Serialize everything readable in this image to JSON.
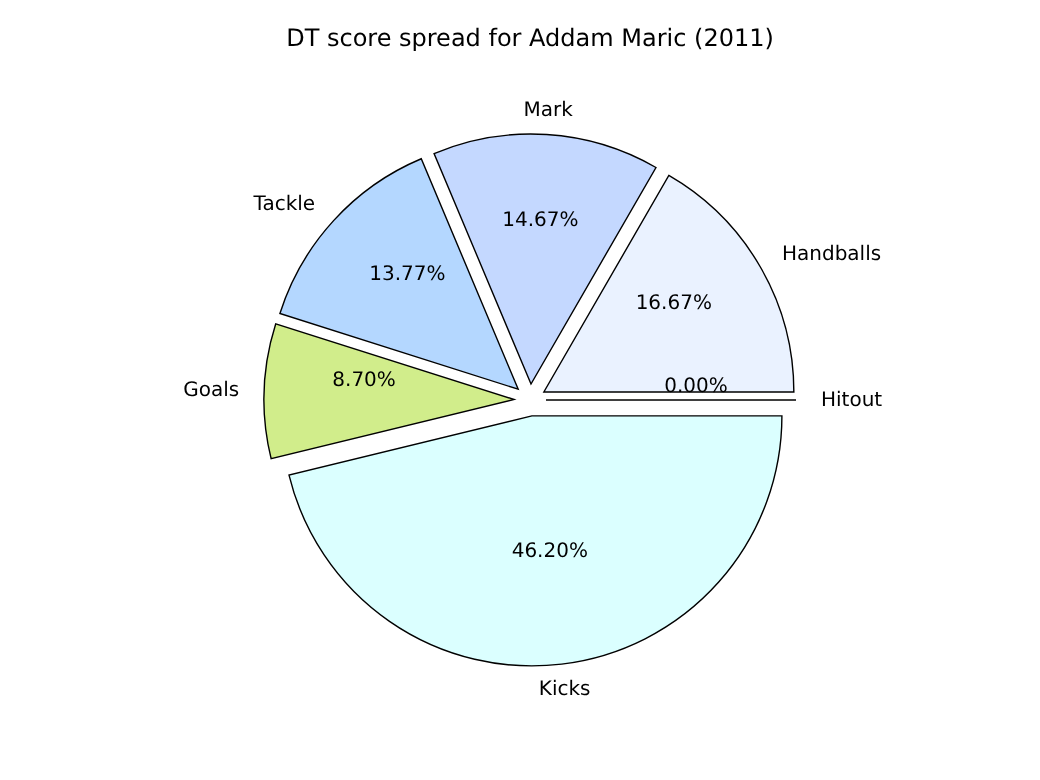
{
  "chart_data": {
    "type": "pie",
    "title": "DT score spread for Addam Maric (2011)",
    "categories": [
      "Handballs",
      "Mark",
      "Tackle",
      "Goals",
      "Kicks",
      "Hitout"
    ],
    "values": [
      16.67,
      14.67,
      13.77,
      8.7,
      46.2,
      0.0
    ],
    "value_labels": [
      "16.67%",
      "14.67%",
      "13.77%",
      "8.70%",
      "46.20%",
      "0.00%"
    ],
    "colors": [
      "#eaf2ff",
      "#c4d8ff",
      "#b4d7ff",
      "#d1ed8b",
      "#dbffff",
      "#f0f0f0"
    ]
  }
}
